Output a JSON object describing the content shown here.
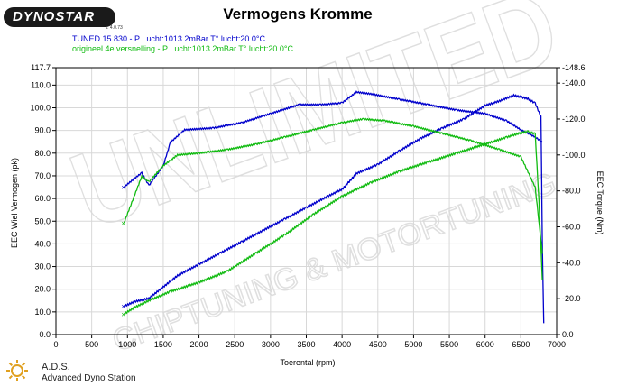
{
  "header": {
    "logo_text": "DYNOSTAR",
    "logo_subtext": "v. 4.0.73",
    "title": "Vermogens Kromme"
  },
  "legend": {
    "line1": "TUNED 15.830  - P Lucht:1013.2mBar T° lucht:20.0°C",
    "line2": "origineel 4e versnelling  - P Lucht:1013.2mBar T° lucht:20.0°C"
  },
  "watermark": {
    "main": "UNLIMITED",
    "sub": "CHIPTUNING & MOTORTUNING"
  },
  "footer": {
    "title": "A.D.S.",
    "subtitle": "Advanced Dyno Station"
  },
  "chart_data": {
    "type": "line",
    "title": "Vermogens Kromme",
    "xlabel": "Toerental (rpm)",
    "ylabel_left": "EEC Wiel Vermogen (pk)",
    "ylabel_right": "EEC Torque (Nm)",
    "xlim": [
      0,
      7000
    ],
    "ylim_left": [
      0,
      117.7
    ],
    "ylim_right": [
      0,
      148.6
    ],
    "x_ticks": [
      "0",
      "500",
      "1000",
      "1500",
      "2000",
      "2500",
      "3000",
      "3500",
      "4000",
      "4500",
      "5000",
      "5500",
      "6000",
      "6500",
      "7000"
    ],
    "y_ticks_left": [
      "0.0",
      "10.0",
      "20.0",
      "30.0",
      "40.0",
      "50.0",
      "60.0",
      "70.0",
      "80.0",
      "90.0",
      "100.0",
      "110.0",
      "117.7"
    ],
    "y_ticks_right": [
      "0.0",
      "-20.0",
      "-40.0",
      "-60.0",
      "-80.0",
      "-100.0",
      "-120.0",
      "-140.0",
      "-148.6"
    ],
    "grid": true,
    "colors": {
      "tuned": "#0000cc",
      "origineel": "#11bb11"
    },
    "series": [
      {
        "name": "TUNED 15.830",
        "kind": "power",
        "axis": "left",
        "color": "#0000cc",
        "x": [
          950,
          1100,
          1300,
          1500,
          1700,
          2000,
          2300,
          2600,
          2900,
          3200,
          3500,
          3800,
          4000,
          4200,
          4500,
          4800,
          5100,
          5400,
          5700,
          6000,
          6200,
          6400,
          6600,
          6700,
          6780,
          6800,
          6820
        ],
        "y": [
          12.5,
          14.5,
          16,
          21,
          26,
          31,
          36,
          41,
          46,
          51,
          56,
          61,
          64,
          71,
          75,
          81,
          86.5,
          91,
          95,
          101,
          103,
          105.5,
          104,
          102,
          96,
          40,
          5
        ]
      },
      {
        "name": "TUNED 15.830",
        "kind": "torque",
        "axis": "right",
        "color": "#0000cc",
        "x": [
          950,
          1100,
          1200,
          1300,
          1500,
          1600,
          1800,
          2200,
          2600,
          3000,
          3400,
          3700,
          4000,
          4200,
          4400,
          4800,
          5200,
          5600,
          6000,
          6300,
          6500,
          6700,
          6800
        ],
        "y": [
          82,
          87,
          90,
          83,
          94,
          107,
          114,
          115,
          118,
          123,
          128,
          128,
          129,
          135,
          134,
          131,
          128,
          125,
          123,
          119,
          114,
          110,
          107
        ]
      },
      {
        "name": "origineel 4e versnelling",
        "kind": "power",
        "axis": "left",
        "color": "#11bb11",
        "x": [
          950,
          1100,
          1300,
          1600,
          2000,
          2400,
          2800,
          3200,
          3600,
          4000,
          4400,
          4800,
          5200,
          5600,
          6000,
          6300,
          6500,
          6600,
          6700,
          6750,
          6780,
          6800
        ],
        "y": [
          9,
          12,
          15,
          19,
          23,
          28,
          36,
          44,
          53,
          61,
          67,
          72,
          76,
          80,
          84,
          87,
          89,
          89.5,
          88.5,
          60,
          38,
          24
        ]
      },
      {
        "name": "origineel 4e versnelling",
        "kind": "torque",
        "axis": "right",
        "color": "#11bb11",
        "x": [
          950,
          1200,
          1300,
          1500,
          1700,
          2000,
          2400,
          2800,
          3200,
          3600,
          4000,
          4300,
          4600,
          5000,
          5400,
          5800,
          6200,
          6500,
          6700,
          6800
        ],
        "y": [
          62,
          88,
          85,
          94,
          100,
          101,
          103,
          106,
          110,
          114,
          118,
          120,
          119,
          116,
          112,
          108,
          103,
          99,
          82,
          45
        ]
      }
    ]
  }
}
